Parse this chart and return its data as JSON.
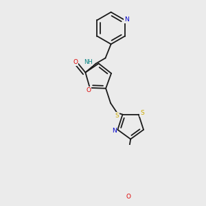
{
  "background_color": "#ebebeb",
  "bond_color": "#1a1a1a",
  "atom_colors": {
    "N": "#0000cc",
    "O": "#dd0000",
    "S": "#ccaa00",
    "NH": "#008080"
  },
  "lw": 1.3
}
